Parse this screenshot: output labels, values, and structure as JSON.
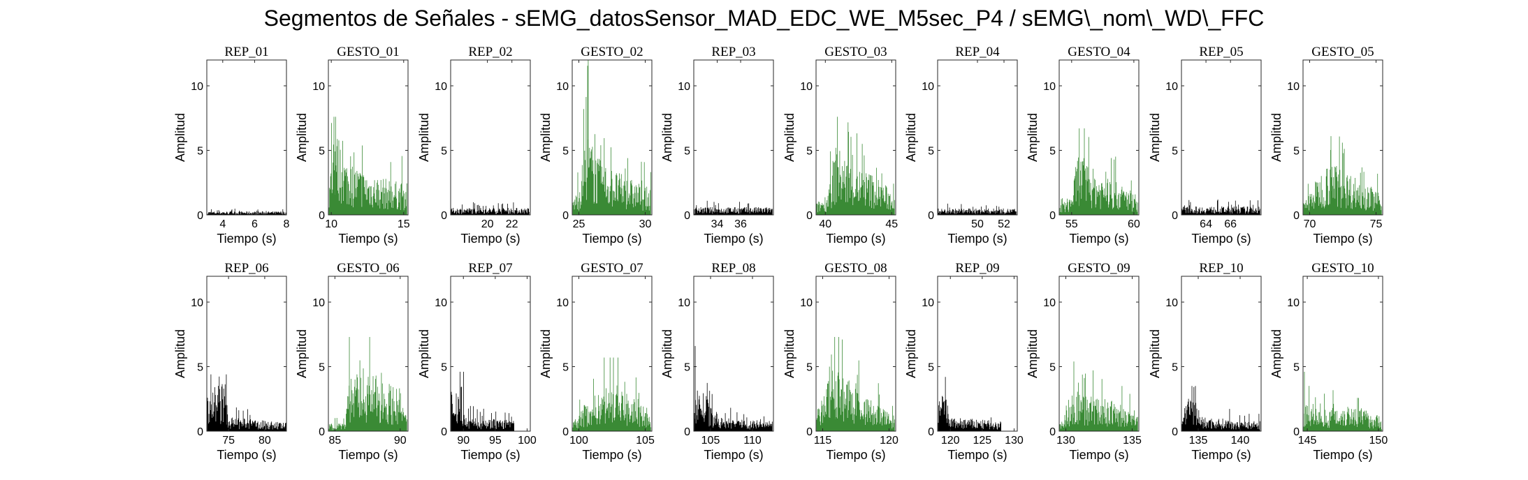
{
  "title": "Segmentos de Señales - sEMG_datosSensor_MAD_EDC_WE_M5sec_P4 / sEMG\\_nom\\_WD\\_FFC",
  "colors": {
    "rest": "#000000",
    "gesture": "#3a8a35",
    "axis": "#262626"
  },
  "chart_data": [
    {
      "type": "bar",
      "title": "REP_01",
      "kind": "rest",
      "xlabel": "Tiempo (s)",
      "ylabel": "Amplitud",
      "xlim": [
        3,
        8
      ],
      "xticks": [
        4,
        6,
        8
      ],
      "ylim": [
        0,
        12
      ],
      "yticks": [
        0,
        5,
        10
      ],
      "data_span": [
        3,
        8
      ],
      "envelope": [
        [
          3,
          0.25
        ],
        [
          8,
          0.25
        ]
      ]
    },
    {
      "type": "bar",
      "title": "GESTO_01",
      "kind": "gesture",
      "xlabel": "Tiempo (s)",
      "ylabel": "Amplitud",
      "xlim": [
        9.8,
        15.3
      ],
      "xticks": [
        10,
        15
      ],
      "yticks": [
        0,
        5,
        10
      ],
      "ylim": [
        0,
        12
      ],
      "data_span": [
        9.8,
        15.3
      ],
      "envelope": [
        [
          9.8,
          1.5
        ],
        [
          10.2,
          6.5
        ],
        [
          11,
          4
        ],
        [
          12.5,
          3
        ],
        [
          14,
          2.5
        ],
        [
          15.3,
          2.2
        ]
      ],
      "peak": 7.6
    },
    {
      "type": "bar",
      "title": "REP_02",
      "kind": "rest",
      "xlabel": "Tiempo (s)",
      "ylabel": "Amplitud",
      "xlim": [
        17,
        23.5
      ],
      "xticks": [
        20,
        22
      ],
      "yticks": [
        0,
        5,
        10
      ],
      "ylim": [
        0,
        12
      ],
      "data_span": [
        17,
        23.5
      ],
      "envelope": [
        [
          17,
          0.5
        ],
        [
          23.5,
          0.5
        ]
      ]
    },
    {
      "type": "bar",
      "title": "GESTO_02",
      "kind": "gesture",
      "xlabel": "Tiempo (s)",
      "ylabel": "Amplitud",
      "xlim": [
        24.5,
        30.5
      ],
      "xticks": [
        25,
        30
      ],
      "yticks": [
        0,
        5,
        10
      ],
      "ylim": [
        0,
        12
      ],
      "data_span": [
        24.5,
        30.5
      ],
      "envelope": [
        [
          24.5,
          1
        ],
        [
          25,
          2
        ],
        [
          25.6,
          6
        ],
        [
          26.5,
          4
        ],
        [
          28,
          3
        ],
        [
          30.5,
          1.8
        ]
      ],
      "peak": 12
    },
    {
      "type": "bar",
      "title": "REP_03",
      "kind": "rest",
      "xlabel": "Tiempo (s)",
      "ylabel": "Amplitud",
      "xlim": [
        32,
        38.8
      ],
      "xticks": [
        34,
        36
      ],
      "yticks": [
        0,
        5,
        10
      ],
      "ylim": [
        0,
        12
      ],
      "data_span": [
        32,
        38.8
      ],
      "envelope": [
        [
          32,
          0.55
        ],
        [
          38.8,
          0.55
        ]
      ]
    },
    {
      "type": "bar",
      "title": "GESTO_03",
      "kind": "gesture",
      "xlabel": "Tiempo (s)",
      "ylabel": "Amplitud",
      "xlim": [
        39.3,
        45.3
      ],
      "xticks": [
        40,
        45
      ],
      "yticks": [
        0,
        5,
        10
      ],
      "ylim": [
        0,
        12
      ],
      "data_span": [
        39.3,
        45.3
      ],
      "envelope": [
        [
          39.3,
          0.8
        ],
        [
          40.1,
          1.5
        ],
        [
          40.8,
          5
        ],
        [
          42,
          3.5
        ],
        [
          43.5,
          3
        ],
        [
          45.3,
          1.5
        ]
      ],
      "peak": 7.6
    },
    {
      "type": "bar",
      "title": "REP_04",
      "kind": "rest",
      "xlabel": "Tiempo (s)",
      "ylabel": "Amplitud",
      "xlim": [
        47,
        53
      ],
      "xticks": [
        50,
        52
      ],
      "yticks": [
        0,
        5,
        10
      ],
      "ylim": [
        0,
        12
      ],
      "data_span": [
        47,
        53
      ],
      "envelope": [
        [
          47,
          0.45
        ],
        [
          53,
          0.45
        ]
      ]
    },
    {
      "type": "bar",
      "title": "GESTO_04",
      "kind": "gesture",
      "xlabel": "Tiempo (s)",
      "ylabel": "Amplitud",
      "xlim": [
        54,
        60.4
      ],
      "xticks": [
        55,
        60
      ],
      "yticks": [
        0,
        5,
        10
      ],
      "ylim": [
        0,
        12
      ],
      "data_span": [
        54,
        60.4
      ],
      "envelope": [
        [
          54,
          0.6
        ],
        [
          55,
          1.5
        ],
        [
          55.5,
          4.5
        ],
        [
          57,
          3
        ],
        [
          60.4,
          1.5
        ]
      ],
      "peak": 6.7
    },
    {
      "type": "bar",
      "title": "REP_05",
      "kind": "rest",
      "xlabel": "Tiempo (s)",
      "ylabel": "Amplitud",
      "xlim": [
        62,
        68.5
      ],
      "xticks": [
        64,
        66
      ],
      "yticks": [
        0,
        5,
        10
      ],
      "ylim": [
        0,
        12
      ],
      "data_span": [
        62,
        68.5
      ],
      "envelope": [
        [
          62,
          0.6
        ],
        [
          68.5,
          0.6
        ]
      ]
    },
    {
      "type": "bar",
      "title": "GESTO_05",
      "kind": "gesture",
      "xlabel": "Tiempo (s)",
      "ylabel": "Amplitud",
      "xlim": [
        69.5,
        75.5
      ],
      "xticks": [
        70,
        75
      ],
      "yticks": [
        0,
        5,
        10
      ],
      "ylim": [
        0,
        12
      ],
      "data_span": [
        69.5,
        75.5
      ],
      "envelope": [
        [
          69.5,
          0.8
        ],
        [
          70.5,
          2.5
        ],
        [
          71.5,
          4
        ],
        [
          73,
          3
        ],
        [
          75.5,
          1.5
        ]
      ],
      "peak": 6.1
    },
    {
      "type": "bar",
      "title": "REP_06",
      "kind": "rest",
      "xlabel": "Tiempo (s)",
      "ylabel": "Amplitud",
      "xlim": [
        72,
        83
      ],
      "xticks": [
        75,
        80
      ],
      "yticks": [
        0,
        5,
        10
      ],
      "ylim": [
        0,
        12
      ],
      "data_span": [
        72,
        83
      ],
      "envelope": [
        [
          72,
          3.2
        ],
        [
          74.5,
          3.5
        ],
        [
          75,
          1
        ],
        [
          83,
          0.6
        ]
      ],
      "peak": 4.4
    },
    {
      "type": "bar",
      "title": "GESTO_06",
      "kind": "gesture",
      "xlabel": "Tiempo (s)",
      "ylabel": "Amplitud",
      "xlim": [
        84.5,
        90.6
      ],
      "xticks": [
        85,
        90
      ],
      "yticks": [
        0,
        5,
        10
      ],
      "ylim": [
        0,
        12
      ],
      "data_span": [
        84.5,
        90.6
      ],
      "envelope": [
        [
          84.5,
          0.5
        ],
        [
          85.8,
          0.7
        ],
        [
          86,
          4
        ],
        [
          88,
          4
        ],
        [
          90,
          3
        ],
        [
          90.6,
          0.6
        ]
      ],
      "peak": 7.3
    },
    {
      "type": "bar",
      "title": "REP_07",
      "kind": "rest",
      "xlabel": "Tiempo (s)",
      "ylabel": "Amplitud",
      "xlim": [
        88,
        100.5
      ],
      "xticks": [
        90,
        95,
        100
      ],
      "yticks": [
        0,
        5,
        10
      ],
      "ylim": [
        0,
        12
      ],
      "data_span": [
        88,
        98
      ],
      "envelope": [
        [
          88,
          3
        ],
        [
          89.8,
          3.5
        ],
        [
          90.2,
          1
        ],
        [
          98,
          0.8
        ]
      ],
      "peak": 4.6
    },
    {
      "type": "bar",
      "title": "GESTO_07",
      "kind": "gesture",
      "xlabel": "Tiempo (s)",
      "ylabel": "Amplitud",
      "xlim": [
        99.5,
        105.5
      ],
      "xticks": [
        100,
        105
      ],
      "yticks": [
        0,
        5,
        10
      ],
      "ylim": [
        0,
        12
      ],
      "data_span": [
        99.5,
        105.5
      ],
      "envelope": [
        [
          99.5,
          0.5
        ],
        [
          100.5,
          2
        ],
        [
          102.5,
          3.5
        ],
        [
          104.5,
          2
        ],
        [
          105.5,
          0.8
        ]
      ],
      "peak": 5.7
    },
    {
      "type": "bar",
      "title": "REP_08",
      "kind": "rest",
      "xlabel": "Tiempo (s)",
      "ylabel": "Amplitud",
      "xlim": [
        103,
        112.5
      ],
      "xticks": [
        105,
        110
      ],
      "yticks": [
        0,
        5,
        10
      ],
      "ylim": [
        0,
        12
      ],
      "data_span": [
        103,
        112.5
      ],
      "envelope": [
        [
          103,
          3.5
        ],
        [
          104.5,
          2.5
        ],
        [
          105.5,
          1
        ],
        [
          112.5,
          0.7
        ]
      ],
      "peak": 6.6
    },
    {
      "type": "bar",
      "title": "GESTO_08",
      "kind": "gesture",
      "xlabel": "Tiempo (s)",
      "ylabel": "Amplitud",
      "xlim": [
        114.5,
        120.5
      ],
      "xticks": [
        115,
        120
      ],
      "yticks": [
        0,
        5,
        10
      ],
      "ylim": [
        0,
        12
      ],
      "data_span": [
        114.5,
        120.5
      ],
      "envelope": [
        [
          114.5,
          1
        ],
        [
          115,
          2.5
        ],
        [
          115.8,
          5
        ],
        [
          117.5,
          3
        ],
        [
          120.5,
          1
        ]
      ],
      "peak": 7.3
    },
    {
      "type": "bar",
      "title": "REP_09",
      "kind": "rest",
      "xlabel": "Tiempo (s)",
      "ylabel": "Amplitud",
      "xlim": [
        118,
        130.5
      ],
      "xticks": [
        120,
        125,
        130
      ],
      "yticks": [
        0,
        5,
        10
      ],
      "ylim": [
        0,
        12
      ],
      "data_span": [
        118,
        128
      ],
      "envelope": [
        [
          118,
          2
        ],
        [
          119,
          3
        ],
        [
          120,
          1
        ],
        [
          128,
          0.7
        ]
      ],
      "peak": 4.2
    },
    {
      "type": "bar",
      "title": "GESTO_09",
      "kind": "gesture",
      "xlabel": "Tiempo (s)",
      "ylabel": "Amplitud",
      "xlim": [
        129.5,
        135.5
      ],
      "xticks": [
        130,
        135
      ],
      "yticks": [
        0,
        5,
        10
      ],
      "ylim": [
        0,
        12
      ],
      "data_span": [
        129.5,
        135.5
      ],
      "envelope": [
        [
          129.5,
          0.5
        ],
        [
          130.5,
          3
        ],
        [
          132,
          2.5
        ],
        [
          134,
          2
        ],
        [
          135.5,
          1
        ]
      ],
      "peak": 5.4
    },
    {
      "type": "bar",
      "title": "REP_10",
      "kind": "rest",
      "xlabel": "Tiempo (s)",
      "ylabel": "Amplitud",
      "xlim": [
        133,
        142.5
      ],
      "xticks": [
        135,
        140
      ],
      "yticks": [
        0,
        5,
        10
      ],
      "ylim": [
        0,
        12
      ],
      "data_span": [
        133,
        142.5
      ],
      "envelope": [
        [
          133,
          2
        ],
        [
          134.5,
          2.5
        ],
        [
          135.5,
          1
        ],
        [
          142.5,
          0.7
        ]
      ],
      "peak": 3.5
    },
    {
      "type": "bar",
      "title": "GESTO_10",
      "kind": "gesture",
      "xlabel": "Tiempo (s)",
      "ylabel": "Amplitud",
      "xlim": [
        144.7,
        150.3
      ],
      "xticks": [
        145,
        150
      ],
      "yticks": [
        0,
        5,
        10
      ],
      "ylim": [
        0,
        12
      ],
      "data_span": [
        144.7,
        150.3
      ],
      "envelope": [
        [
          144.7,
          2
        ],
        [
          146,
          1.5
        ],
        [
          148,
          2
        ],
        [
          150.3,
          1
        ]
      ],
      "peak": 4.6
    }
  ]
}
